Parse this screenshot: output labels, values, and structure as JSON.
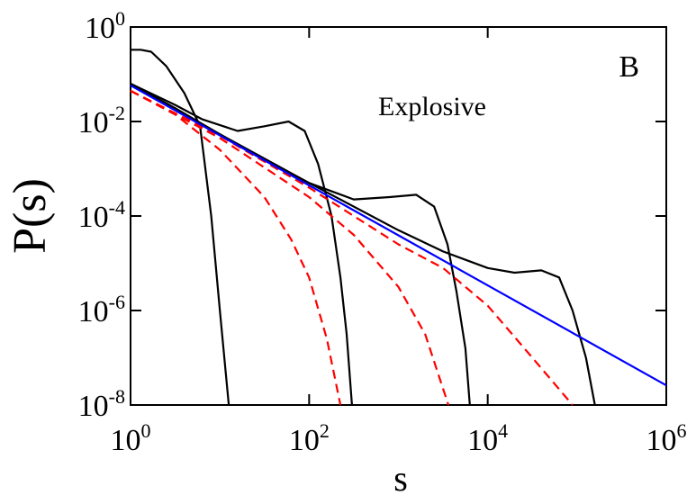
{
  "chart_data": {
    "type": "line",
    "xlabel": "s",
    "ylabel": "P(s)",
    "annotations": [
      "B",
      "Explosive"
    ],
    "xscale": "log",
    "yscale": "log",
    "xlim": [
      1,
      1000000
    ],
    "ylim": [
      1e-08,
      1
    ],
    "xticks": [
      {
        "value": 1,
        "label": "10^0"
      },
      {
        "value": 100,
        "label": "10^2"
      },
      {
        "value": 10000,
        "label": "10^4"
      },
      {
        "value": 1000000,
        "label": "10^6"
      }
    ],
    "yticks": [
      {
        "value": 1e-08,
        "label": "10^-8"
      },
      {
        "value": 1e-06,
        "label": "10^-6"
      },
      {
        "value": 0.0001,
        "label": "10^-4"
      },
      {
        "value": 0.01,
        "label": "10^-2"
      },
      {
        "value": 1,
        "label": "10^0"
      }
    ],
    "series": [
      {
        "color": "#000000",
        "style": "solid",
        "x": [
          1,
          1.3,
          1.7,
          2.5,
          4,
          6,
          8,
          10,
          12.6
        ],
        "values": [
          0.33,
          0.33,
          0.3,
          0.15,
          0.04,
          0.008,
          0.0001,
          1e-06,
          1e-08
        ]
      },
      {
        "color": "#000000",
        "style": "solid",
        "x": [
          1,
          3.16,
          6.31,
          15.8,
          31.6,
          58.9,
          89.1,
          126,
          178,
          224,
          263,
          302
        ],
        "values": [
          0.0631,
          0.0224,
          0.0112,
          0.00631,
          0.00794,
          0.01,
          0.00631,
          0.00126,
          0.0001,
          5.01e-06,
          3.16e-07,
          1e-08
        ]
      },
      {
        "color": "#000000",
        "style": "solid",
        "x": [
          1,
          3.16,
          10,
          31.6,
          100,
          316,
          794,
          1585,
          2512,
          3548,
          4467,
          5623,
          6310
        ],
        "values": [
          0.0631,
          0.0191,
          0.00537,
          0.00158,
          0.000501,
          0.000224,
          0.000251,
          0.000282,
          0.000158,
          2.51e-05,
          2.51e-06,
          1.58e-07,
          1e-08
        ]
      },
      {
        "color": "#000000",
        "style": "solid",
        "x": [
          1,
          10,
          100,
          1000,
          3162,
          10000,
          19953,
          39811,
          63096,
          89125,
          125893,
          158489
        ],
        "values": [
          0.0631,
          0.00537,
          0.000501,
          5.01e-05,
          1.78e-05,
          7.94e-06,
          6.31e-06,
          7.08e-06,
          5.01e-06,
          1e-06,
          1e-07,
          1e-08
        ]
      },
      {
        "color": "#ff0000",
        "style": "dashed",
        "x": [
          1,
          3.16,
          10,
          31.6,
          63.1,
          100,
          158,
          224
        ],
        "values": [
          0.0447,
          0.0141,
          0.00251,
          0.000251,
          3.16e-05,
          5.01e-06,
          2.51e-07,
          1e-08
        ]
      },
      {
        "color": "#ff0000",
        "style": "dashed",
        "x": [
          1,
          10,
          100,
          316,
          1000,
          1995,
          3631
        ],
        "values": [
          0.0447,
          0.00447,
          0.000251,
          3.98e-05,
          3.16e-06,
          3.16e-07,
          1e-08
        ]
      },
      {
        "color": "#ff0000",
        "style": "dashed",
        "x": [
          1,
          10,
          100,
          1000,
          3162,
          10000,
          31623,
          89125
        ],
        "values": [
          0.0447,
          0.00501,
          0.000398,
          2.51e-05,
          7.94e-06,
          1.26e-06,
          1e-07,
          1e-08
        ]
      },
      {
        "color": "#0000ff",
        "style": "solid",
        "x": [
          1,
          1000,
          1000000
        ],
        "values": [
          0.058,
          3.9e-05,
          2.6e-08
        ]
      }
    ]
  }
}
